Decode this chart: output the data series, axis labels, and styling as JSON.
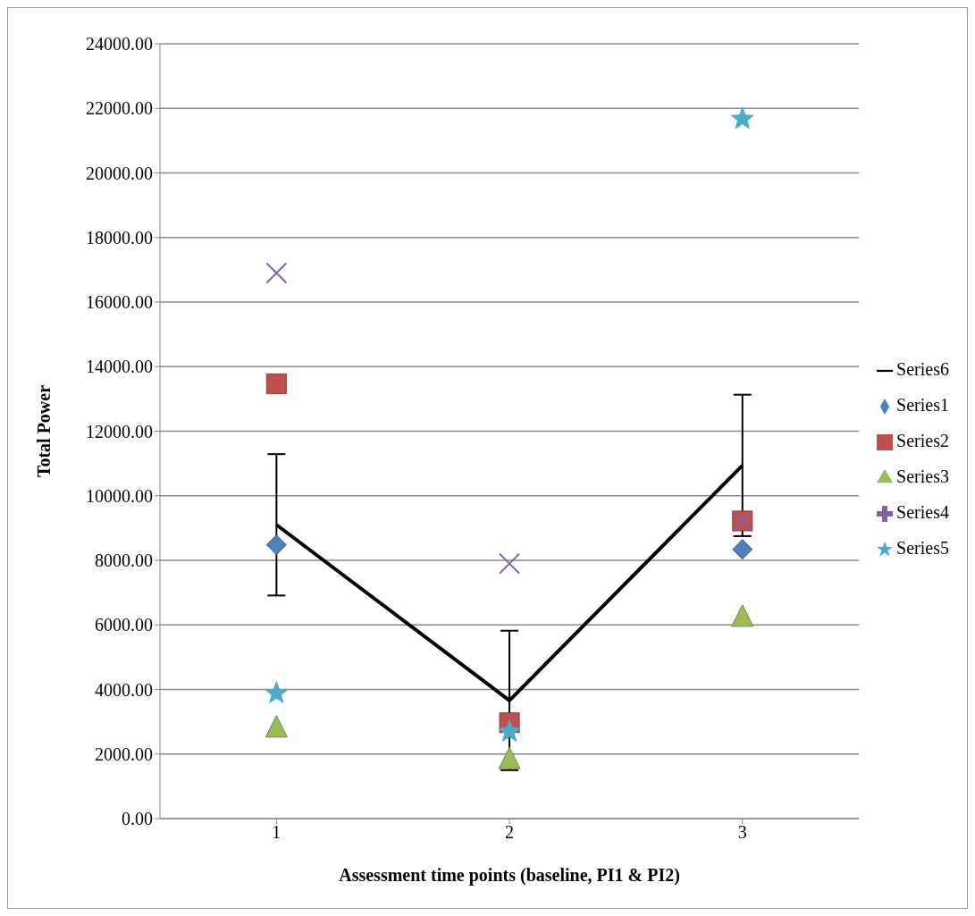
{
  "chart_data": {
    "type": "scatter",
    "xlabel": "Assessment time points (baseline, PI1 & PI2)",
    "ylabel": "Total Power",
    "categories": [
      "1",
      "2",
      "3"
    ],
    "series": [
      {
        "name": "Series6",
        "type": "line",
        "color": "#000000",
        "marker": "none",
        "values": [
          9100,
          3660,
          10940
        ],
        "errors": [
          2190,
          2160,
          2190
        ]
      },
      {
        "name": "Series1",
        "color": "#4f81bd",
        "marker": "diamond",
        "values": [
          8480,
          null,
          8340
        ]
      },
      {
        "name": "Series2",
        "color": "#c0504d",
        "marker": "square",
        "values": [
          13470,
          2970,
          9220
        ]
      },
      {
        "name": "Series3",
        "color": "#9bbb59",
        "marker": "triangle",
        "values": [
          2830,
          1850,
          6260
        ]
      },
      {
        "name": "Series4",
        "color": "#8064a2",
        "marker": "cross",
        "values": [
          16900,
          7900,
          9200
        ]
      },
      {
        "name": "Series5",
        "color": "#4bacc6",
        "marker": "star",
        "values": [
          3880,
          2690,
          21670
        ]
      }
    ],
    "ylim": [
      0,
      24000
    ],
    "yticks": [
      {
        "value": 0,
        "label": "0.00"
      },
      {
        "value": 2000,
        "label": "2000.00"
      },
      {
        "value": 4000,
        "label": "4000.00"
      },
      {
        "value": 6000,
        "label": "6000.00"
      },
      {
        "value": 8000,
        "label": "8000.00"
      },
      {
        "value": 10000,
        "label": "10000.00"
      },
      {
        "value": 12000,
        "label": "12000.00"
      },
      {
        "value": 14000,
        "label": "14000.00"
      },
      {
        "value": 16000,
        "label": "16000.00"
      },
      {
        "value": 18000,
        "label": "18000.00"
      },
      {
        "value": 20000,
        "label": "20000.00"
      },
      {
        "value": 22000,
        "label": "22000.00"
      },
      {
        "value": 24000,
        "label": "24000.00"
      }
    ],
    "grid": "y",
    "legend": "right"
  }
}
